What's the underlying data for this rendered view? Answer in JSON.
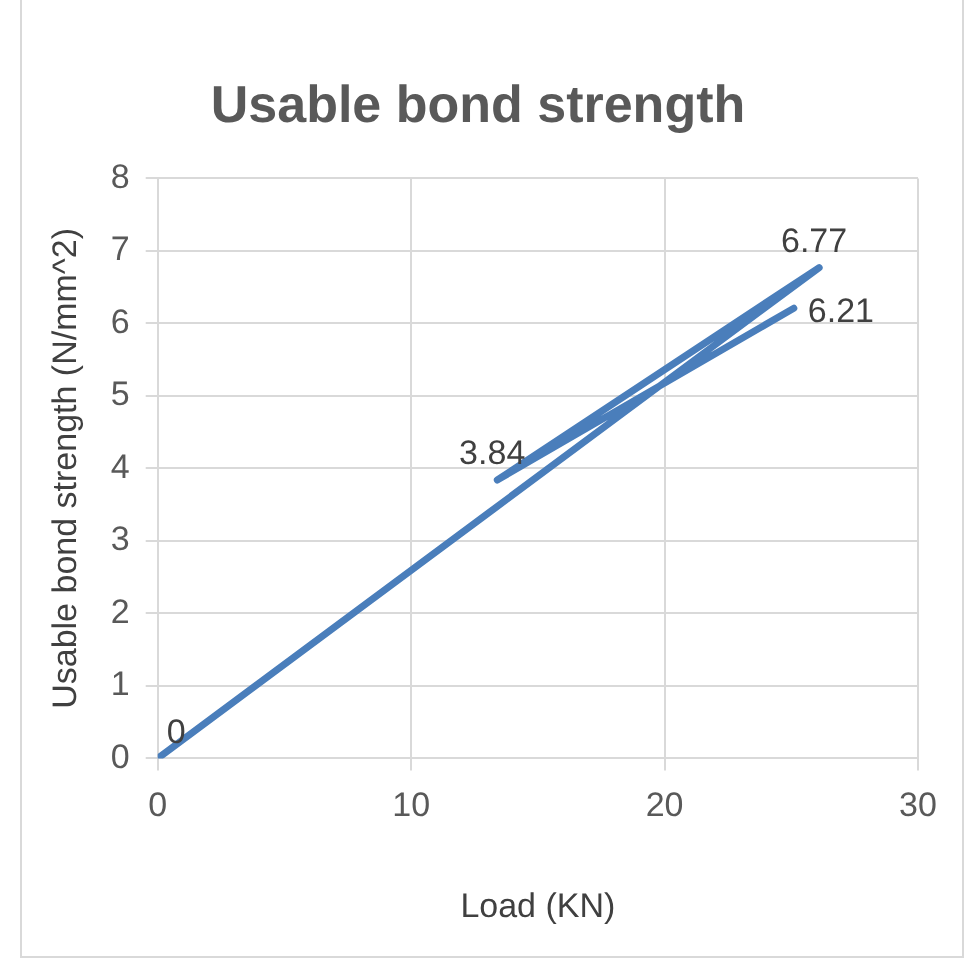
{
  "chart_data": {
    "type": "line",
    "title": "Usable bond strength",
    "xlabel": "Load (KN)",
    "ylabel": "Usable bond strength (N/mm^2)",
    "x": [
      0,
      26.1,
      13.4,
      25.1
    ],
    "series": [
      {
        "color": "#4a7ebb",
        "values": [
          0,
          6.77,
          3.84,
          6.21
        ]
      }
    ],
    "xlim": [
      0,
      30
    ],
    "xticks": [
      0,
      10,
      20,
      30
    ],
    "ylim": [
      0,
      8
    ],
    "yticks": [
      0,
      1,
      2,
      3,
      4,
      5,
      6,
      7,
      8
    ],
    "grid": true,
    "legend": false,
    "marker": "none",
    "line_style": "solid",
    "data_labels": true
  }
}
